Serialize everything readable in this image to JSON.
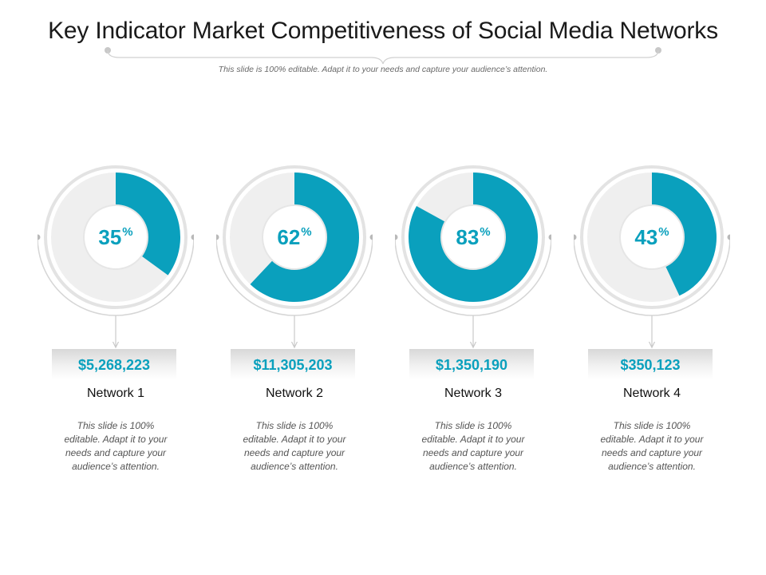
{
  "header": {
    "title": "Key Indicator Market Competitiveness of Social Media Networks",
    "subtitle": "This slide is 100% editable. Adapt it to your needs and capture your audience’s attention."
  },
  "colors": {
    "accent": "#0aa0bd",
    "track": "#efefef",
    "ring": "#d6d6d6"
  },
  "chart_data": {
    "type": "pie",
    "categories": [
      "Network 1",
      "Network 2",
      "Network 3",
      "Network 4"
    ],
    "values": [
      35,
      62,
      83,
      43
    ]
  },
  "cards": [
    {
      "percent": "35",
      "percent_symbol": "%",
      "value": "$5,268,223",
      "network": "Network 1",
      "description": "This slide is 100% editable. Adapt it to your needs and capture your audience’s attention."
    },
    {
      "percent": "62",
      "percent_symbol": "%",
      "value": "$11,305,203",
      "network": "Network 2",
      "description": "This slide is 100% editable. Adapt it to your needs and capture your audience’s attention."
    },
    {
      "percent": "83",
      "percent_symbol": "%",
      "value": "$1,350,190",
      "network": "Network 3",
      "description": "This slide is 100% editable. Adapt it to your needs and capture your audience’s attention."
    },
    {
      "percent": "43",
      "percent_symbol": "%",
      "value": "$350,123",
      "network": "Network 4",
      "description": "This slide is 100% editable. Adapt it to your needs and capture your audience’s attention."
    }
  ]
}
